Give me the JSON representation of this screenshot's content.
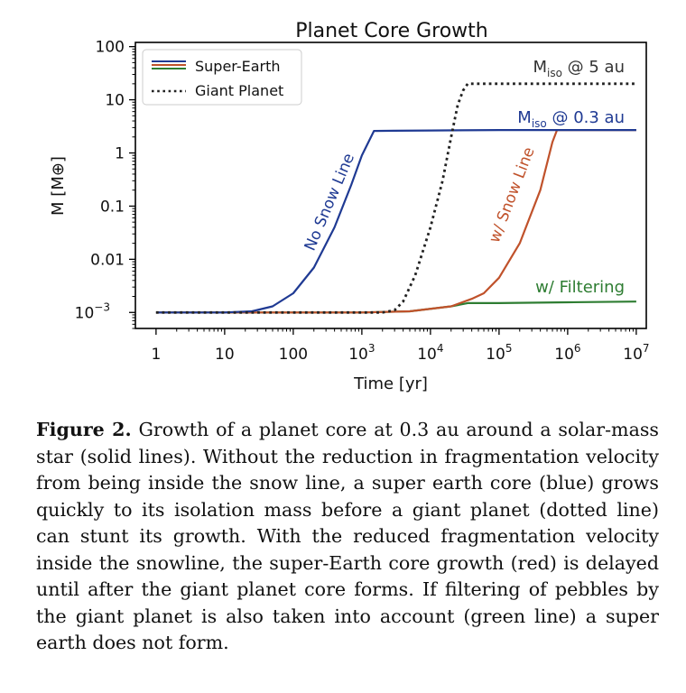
{
  "chart_data": {
    "type": "line",
    "title": "Planet Core Growth",
    "xlabel": "Time [yr]",
    "ylabel": "M [M⊕]",
    "xscale": "log",
    "yscale": "log",
    "xlim": [
      0.5,
      14000000
    ],
    "ylim": [
      0.0005,
      120
    ],
    "x_ticks": [
      {
        "value": 1,
        "label": "1"
      },
      {
        "value": 10,
        "label": "10"
      },
      {
        "value": 100,
        "label": "100"
      },
      {
        "value": 1000,
        "base": "10",
        "exp": "3"
      },
      {
        "value": 10000,
        "base": "10",
        "exp": "4"
      },
      {
        "value": 100000,
        "base": "10",
        "exp": "5"
      },
      {
        "value": 1000000,
        "base": "10",
        "exp": "6"
      },
      {
        "value": 10000000,
        "base": "10",
        "exp": "7"
      }
    ],
    "y_ticks": [
      {
        "value": 0.001,
        "base": "10",
        "exp": "−3"
      },
      {
        "value": 0.01,
        "label": "0.01"
      },
      {
        "value": 0.1,
        "label": "0.1"
      },
      {
        "value": 1,
        "label": "1"
      },
      {
        "value": 10,
        "label": "10"
      },
      {
        "value": 100,
        "label": "100"
      }
    ],
    "legend": {
      "placement": "top-left",
      "entries": [
        {
          "label": "Super-Earth",
          "style": "solid-tricolor"
        },
        {
          "label": "Giant Planet",
          "style": "dotted"
        }
      ]
    },
    "series": [
      {
        "name": "No Snow Line",
        "color": "#1f3a93",
        "style": "solid",
        "x": [
          1,
          10,
          25,
          50,
          100,
          200,
          400,
          700,
          1000,
          1500,
          3000,
          10000,
          100000,
          700000,
          10000000
        ],
        "y": [
          0.001,
          0.001,
          0.00105,
          0.0013,
          0.0023,
          0.007,
          0.04,
          0.25,
          0.9,
          2.6,
          2.62,
          2.65,
          2.7,
          2.7,
          2.7
        ]
      },
      {
        "name": "w/ Snow Line",
        "color": "#c0522b",
        "style": "solid",
        "x": [
          1,
          1000,
          5000,
          20000,
          40000,
          60000,
          100000,
          200000,
          400000,
          600000,
          700000,
          10000000
        ],
        "y": [
          0.001,
          0.001,
          0.00105,
          0.0013,
          0.0018,
          0.0023,
          0.0045,
          0.02,
          0.2,
          1.6,
          2.7,
          2.7
        ]
      },
      {
        "name": "w/ Filtering",
        "color": "#2e7d32",
        "style": "solid",
        "x": [
          1,
          1000,
          5000,
          20000,
          35000,
          100000,
          1000000,
          10000000
        ],
        "y": [
          0.001,
          0.001,
          0.00105,
          0.0013,
          0.0015,
          0.0015,
          0.00155,
          0.0016
        ]
      },
      {
        "name": "Giant Planet",
        "color": "#222222",
        "style": "dotted",
        "x": [
          1,
          2000,
          3000,
          4000,
          6000,
          10000,
          15000,
          20000,
          25000,
          30000,
          35000,
          100000,
          1000000,
          10000000
        ],
        "y": [
          0.001,
          0.001,
          0.0011,
          0.0016,
          0.005,
          0.04,
          0.3,
          2.0,
          8.0,
          15,
          20,
          20,
          20,
          20
        ]
      }
    ],
    "annotations": [
      {
        "id": "no-snow",
        "text": "No Snow Line",
        "color": "#1f3a93"
      },
      {
        "id": "w-snow",
        "text": "w/ Snow Line",
        "color": "#c0522b"
      },
      {
        "id": "filter",
        "text": "w/ Filtering",
        "color": "#2e7d32"
      },
      {
        "id": "miso5",
        "pre": "M",
        "sub": "iso",
        "post": " @ 5 au",
        "color": "#333333"
      },
      {
        "id": "miso03",
        "pre": "M",
        "sub": "iso",
        "post": " @ 0.3 au",
        "color": "#1f3a93"
      }
    ]
  },
  "caption": {
    "label": "Figure 2.",
    "text": "  Growth of a planet core at 0.3 au around a solar-mass star (solid lines). Without the reduction in fragmentation velocity from being inside the snow line, a super earth core (blue) grows quickly to its isolation mass before a giant planet (dotted line) can stunt its growth. With the reduced fragmentation velocity inside the snowline, the super-Earth core growth (red) is delayed until after the giant planet core forms. If filtering of pebbles by the giant planet is also taken into account (green line) a super earth does not form."
  }
}
